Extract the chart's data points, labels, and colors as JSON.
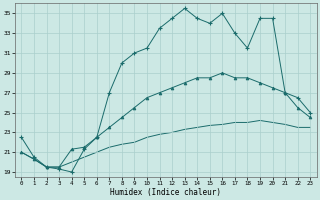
{
  "xlabel": "Humidex (Indice chaleur)",
  "bg_color": "#cce8e4",
  "line_color": "#1a6b6b",
  "grid_color": "#aacfcc",
  "xlim": [
    -0.5,
    23.5
  ],
  "ylim": [
    18.5,
    36.0
  ],
  "yticks": [
    19,
    21,
    23,
    25,
    27,
    29,
    31,
    33,
    35
  ],
  "xticks": [
    0,
    1,
    2,
    3,
    4,
    5,
    6,
    7,
    8,
    9,
    10,
    11,
    12,
    13,
    14,
    15,
    16,
    17,
    18,
    19,
    20,
    21,
    22,
    23
  ],
  "s1_x": [
    0,
    1,
    2,
    3,
    4,
    5,
    6,
    7,
    8,
    9,
    10,
    11,
    12,
    13,
    14,
    15,
    16,
    17,
    18,
    19,
    20,
    21,
    22,
    23
  ],
  "s1_y": [
    22.5,
    20.5,
    19.5,
    19.3,
    19.0,
    21.3,
    22.5,
    27.0,
    30.0,
    31.0,
    31.5,
    33.5,
    34.5,
    35.5,
    34.5,
    34.0,
    35.0,
    33.0,
    31.5,
    34.5,
    34.5,
    27.0,
    26.5,
    25.0
  ],
  "s2_x": [
    0,
    1,
    2,
    3,
    4,
    5,
    6,
    7,
    8,
    9,
    10,
    11,
    12,
    13,
    14,
    15,
    16,
    17,
    18,
    19,
    20,
    21,
    22,
    23
  ],
  "s2_y": [
    21.0,
    20.3,
    19.5,
    19.5,
    21.3,
    21.5,
    22.5,
    23.5,
    24.5,
    25.5,
    26.5,
    27.0,
    27.5,
    28.0,
    28.5,
    28.5,
    29.0,
    28.5,
    28.5,
    28.0,
    27.5,
    27.0,
    25.5,
    24.5
  ],
  "s3_x": [
    0,
    1,
    2,
    3,
    4,
    5,
    6,
    7,
    8,
    9,
    10,
    11,
    12,
    13,
    14,
    15,
    16,
    17,
    18,
    19,
    20,
    21,
    22,
    23
  ],
  "s3_y": [
    21.0,
    20.3,
    19.5,
    19.5,
    20.0,
    20.5,
    21.0,
    21.5,
    21.8,
    22.0,
    22.5,
    22.8,
    23.0,
    23.3,
    23.5,
    23.7,
    23.8,
    24.0,
    24.0,
    24.2,
    24.0,
    23.8,
    23.5,
    23.5
  ]
}
